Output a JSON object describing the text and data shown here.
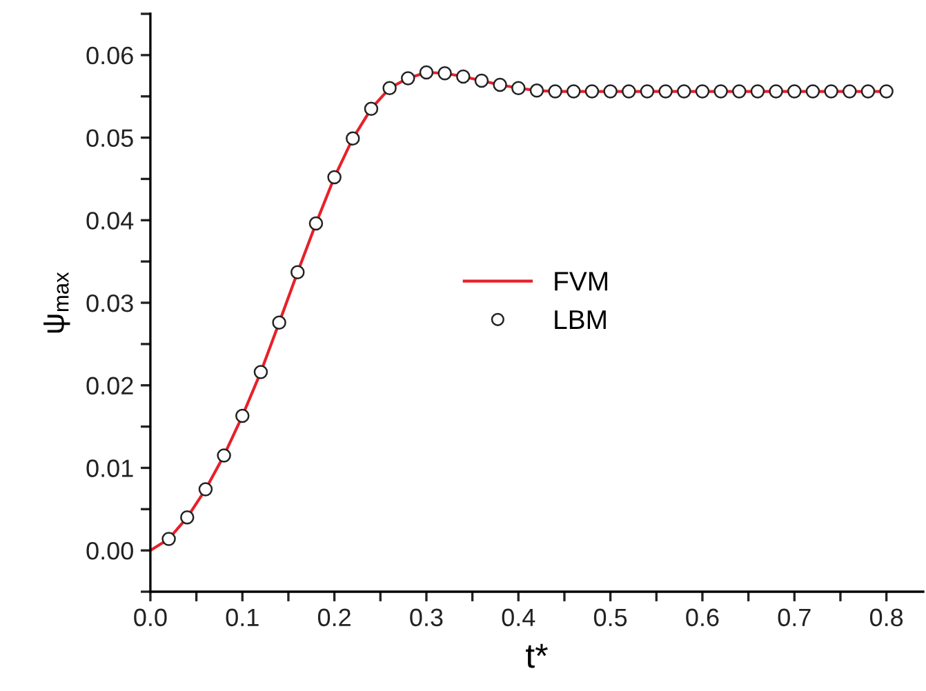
{
  "chart_data": {
    "type": "line",
    "xlabel": "t*",
    "ylabel": "ψ$_{max}$",
    "xlim": [
      0,
      0.84
    ],
    "ylim": [
      -0.005,
      0.065
    ],
    "xticks": [
      {
        "value": 0.0,
        "label": "0.0"
      },
      {
        "value": 0.05,
        "label": null
      },
      {
        "value": 0.1,
        "label": "0.1"
      },
      {
        "value": 0.15,
        "label": null
      },
      {
        "value": 0.2,
        "label": "0.2"
      },
      {
        "value": 0.25,
        "label": null
      },
      {
        "value": 0.3,
        "label": "0.3"
      },
      {
        "value": 0.35,
        "label": null
      },
      {
        "value": 0.4,
        "label": "0.4"
      },
      {
        "value": 0.45,
        "label": null
      },
      {
        "value": 0.5,
        "label": "0.5"
      },
      {
        "value": 0.55,
        "label": null
      },
      {
        "value": 0.6,
        "label": "0.6"
      },
      {
        "value": 0.65,
        "label": null
      },
      {
        "value": 0.7,
        "label": "0.7"
      },
      {
        "value": 0.75,
        "label": null
      },
      {
        "value": 0.8,
        "label": "0.8"
      }
    ],
    "yticks": [
      {
        "value": -0.005,
        "label": null
      },
      {
        "value": 0.0,
        "label": "0.00"
      },
      {
        "value": 0.005,
        "label": null
      },
      {
        "value": 0.01,
        "label": "0.01"
      },
      {
        "value": 0.015,
        "label": null
      },
      {
        "value": 0.02,
        "label": "0.02"
      },
      {
        "value": 0.025,
        "label": null
      },
      {
        "value": 0.03,
        "label": "0.03"
      },
      {
        "value": 0.035,
        "label": null
      },
      {
        "value": 0.04,
        "label": "0.04"
      },
      {
        "value": 0.045,
        "label": null
      },
      {
        "value": 0.05,
        "label": "0.05"
      },
      {
        "value": 0.055,
        "label": null
      },
      {
        "value": 0.06,
        "label": "0.06"
      },
      {
        "value": 0.065,
        "label": null
      }
    ],
    "grid": false,
    "legend": "center",
    "series": [
      {
        "name": "FVM",
        "color": "#e8202a",
        "marker": "none",
        "line_style": "solid",
        "x": [
          0,
          0.02,
          0.04,
          0.06,
          0.08,
          0.1,
          0.12,
          0.14,
          0.16,
          0.18,
          0.2,
          0.22,
          0.24,
          0.26,
          0.28,
          0.3,
          0.32,
          0.34,
          0.36,
          0.38,
          0.4,
          0.42,
          0.44,
          0.46,
          0.48,
          0.5,
          0.52,
          0.54,
          0.56,
          0.58,
          0.6,
          0.62,
          0.64,
          0.66,
          0.68,
          0.7,
          0.72,
          0.74,
          0.76,
          0.78,
          0.8
        ],
        "values": [
          0.0,
          0.0014,
          0.004,
          0.0074,
          0.0115,
          0.0163,
          0.0216,
          0.0276,
          0.0337,
          0.0396,
          0.0452,
          0.0499,
          0.0535,
          0.056,
          0.0572,
          0.0579,
          0.0578,
          0.0574,
          0.0569,
          0.0564,
          0.056,
          0.0557,
          0.0556,
          0.0556,
          0.0556,
          0.0556,
          0.0556,
          0.0556,
          0.0556,
          0.0556,
          0.0556,
          0.0556,
          0.0556,
          0.0556,
          0.0556,
          0.0556,
          0.0556,
          0.0556,
          0.0556,
          0.0556,
          0.0556
        ]
      },
      {
        "name": "LBM",
        "type": "scatter",
        "color": "#222222",
        "marker": "circle",
        "x": [
          0.02,
          0.04,
          0.06,
          0.08,
          0.1,
          0.12,
          0.14,
          0.16,
          0.18,
          0.2,
          0.22,
          0.24,
          0.26,
          0.28,
          0.3,
          0.32,
          0.34,
          0.36,
          0.38,
          0.4,
          0.42,
          0.44,
          0.46,
          0.48,
          0.5,
          0.52,
          0.54,
          0.56,
          0.58,
          0.6,
          0.62,
          0.64,
          0.66,
          0.68,
          0.7,
          0.72,
          0.74,
          0.76,
          0.78,
          0.8
        ],
        "values": [
          0.0014,
          0.004,
          0.0074,
          0.0115,
          0.0163,
          0.0216,
          0.0276,
          0.0337,
          0.0396,
          0.0452,
          0.0499,
          0.0535,
          0.056,
          0.0572,
          0.0579,
          0.0578,
          0.0574,
          0.0569,
          0.0564,
          0.056,
          0.0557,
          0.0556,
          0.0556,
          0.0556,
          0.0556,
          0.0556,
          0.0556,
          0.0556,
          0.0556,
          0.0556,
          0.0556,
          0.0556,
          0.0556,
          0.0556,
          0.0556,
          0.0556,
          0.0556,
          0.0556,
          0.0556,
          0.0556
        ]
      }
    ]
  }
}
